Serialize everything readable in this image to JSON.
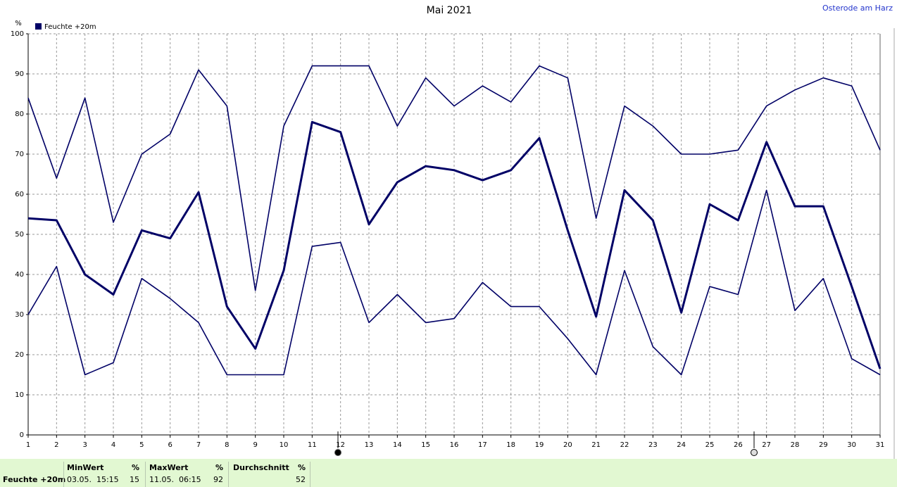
{
  "chart_data": {
    "type": "line",
    "title": "Mai 2021",
    "location": "Osterode am Harz",
    "y_unit": "%",
    "x": [
      1,
      2,
      3,
      4,
      5,
      6,
      7,
      8,
      9,
      10,
      11,
      12,
      13,
      14,
      15,
      16,
      17,
      18,
      19,
      20,
      21,
      22,
      23,
      24,
      25,
      26,
      27,
      28,
      29,
      30,
      31
    ],
    "series": [
      {
        "name": "Feuchte +20m",
        "color": "#000066",
        "values": [
          54,
          53.5,
          40,
          35,
          51,
          49,
          60.5,
          32,
          21.5,
          41,
          78,
          75.5,
          52.5,
          63,
          67,
          66,
          63.5,
          66,
          74,
          51,
          29.5,
          61,
          53.5,
          30.5,
          57.5,
          53.5,
          73,
          57,
          57,
          37,
          16.5
        ],
        "min_values": [
          30,
          42,
          15,
          18,
          39,
          34,
          28,
          15,
          15,
          15,
          47,
          48,
          28,
          35,
          28,
          29,
          38,
          32,
          32,
          24,
          15,
          41,
          22,
          15,
          37,
          35,
          61,
          31,
          39,
          19,
          15
        ],
        "max_values": [
          84,
          64,
          84,
          53,
          70,
          75,
          91,
          82,
          36,
          77,
          92,
          92,
          92,
          77,
          89,
          82,
          87,
          83,
          92,
          89,
          54,
          82,
          77,
          70,
          70,
          71,
          82,
          86,
          89,
          87,
          71
        ]
      }
    ],
    "xlim": [
      1,
      31
    ],
    "xticks": [
      1,
      2,
      3,
      4,
      5,
      6,
      7,
      8,
      9,
      10,
      11,
      12,
      13,
      14,
      15,
      16,
      17,
      18,
      19,
      20,
      21,
      22,
      23,
      24,
      25,
      26,
      27,
      28,
      29,
      30,
      31
    ],
    "ylim": [
      0,
      100
    ],
    "yticks": [
      0,
      10,
      20,
      30,
      40,
      50,
      60,
      70,
      80,
      90,
      100
    ],
    "grid": true
  },
  "footer": {
    "row_label": "Feuchte +20m",
    "columns": [
      {
        "header": "MinWert",
        "unit": "%",
        "time": "03.05.  15:15",
        "value": "15"
      },
      {
        "header": "MaxWert",
        "unit": "%",
        "time": "11.05.  06:15",
        "value": "92"
      },
      {
        "header": "Durchschnitt",
        "unit": "%",
        "value": "52"
      }
    ]
  }
}
